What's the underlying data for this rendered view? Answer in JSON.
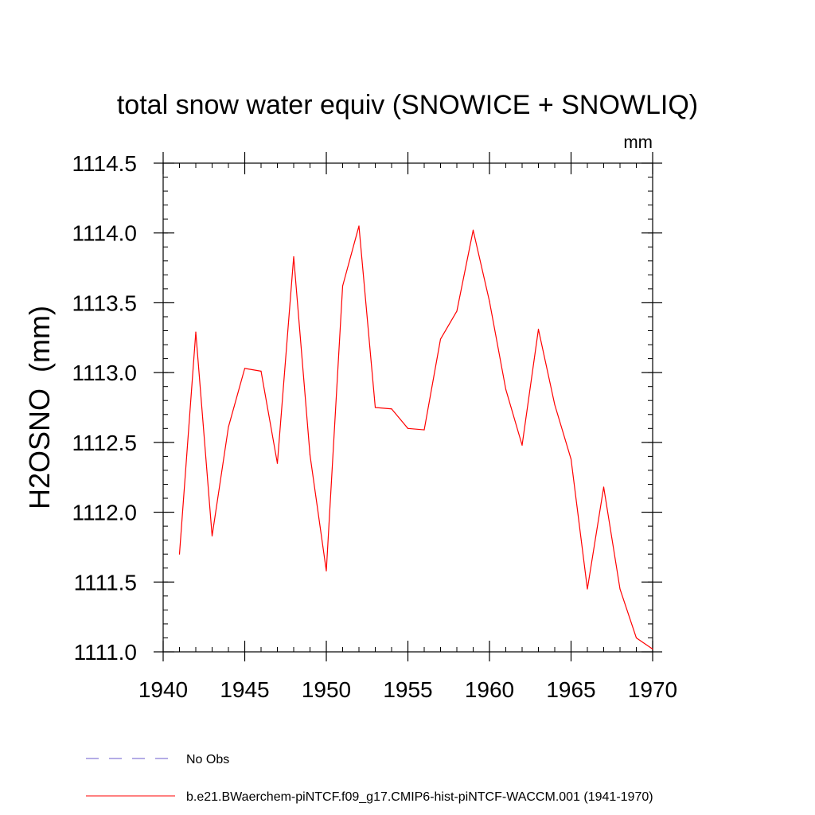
{
  "chart_data": {
    "type": "line",
    "title": "total snow water equiv (SNOWICE + SNOWLIQ)",
    "units": "mm",
    "ylabel": "H2OSNO  (mm)",
    "xlabel": "",
    "xlim": [
      1940,
      1970
    ],
    "ylim": [
      1111.0,
      1114.5
    ],
    "xticks": [
      1940,
      1945,
      1950,
      1955,
      1960,
      1965,
      1970
    ],
    "xtick_labels": [
      "1940",
      "1945",
      "1950",
      "1955",
      "1960",
      "1965",
      "1970"
    ],
    "yticks": [
      1111.0,
      1111.5,
      1112.0,
      1112.5,
      1113.0,
      1113.5,
      1114.0,
      1114.5
    ],
    "ytick_labels": [
      "1111.0",
      "1111.5",
      "1112.0",
      "1112.5",
      "1113.0",
      "1113.5",
      "1114.0",
      "1114.5"
    ],
    "grid": false,
    "legend_position": "bottom",
    "series": [
      {
        "name": "b.e21.BWaerchem-piNTCF.f09_g17.CMIP6-hist-piNTCF-WACCM.001 (1941-1970)",
        "color": "#ff0000",
        "x": [
          1941,
          1942,
          1943,
          1944,
          1945,
          1946,
          1947,
          1948,
          1949,
          1950,
          1951,
          1952,
          1953,
          1954,
          1955,
          1956,
          1957,
          1958,
          1959,
          1960,
          1961,
          1962,
          1963,
          1964,
          1965,
          1966,
          1967,
          1968,
          1969,
          1970
        ],
        "y": [
          1111.7,
          1113.29,
          1111.83,
          1112.61,
          1113.03,
          1113.01,
          1112.35,
          1113.83,
          1112.41,
          1111.58,
          1113.62,
          1114.05,
          1112.75,
          1112.74,
          1112.6,
          1112.59,
          1113.24,
          1113.44,
          1114.02,
          1113.51,
          1112.88,
          1112.48,
          1113.31,
          1112.77,
          1112.38,
          1111.45,
          1112.18,
          1111.45,
          1111.1,
          1111.02
        ]
      }
    ],
    "legend": [
      {
        "label": "No Obs",
        "color": "#6a5acd",
        "dash": true
      },
      {
        "label": "b.e21.BWaerchem-piNTCF.f09_g17.CMIP6-hist-piNTCF-WACCM.001 (1941-1970)",
        "color": "#ff0000",
        "dash": false
      }
    ]
  }
}
